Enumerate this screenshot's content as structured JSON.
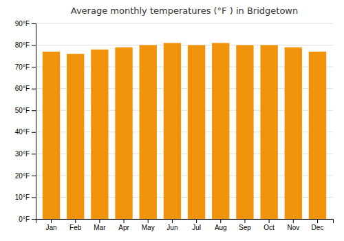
{
  "chart_data": {
    "type": "bar",
    "title": "Average monthly temperatures (°F ) in Bridgetown",
    "categories": [
      "Jan",
      "Feb",
      "Mar",
      "Apr",
      "May",
      "Jun",
      "Jul",
      "Aug",
      "Sep",
      "Oct",
      "Nov",
      "Dec"
    ],
    "values": [
      77,
      76,
      78,
      79,
      80,
      81,
      80,
      81,
      80,
      80,
      79,
      77
    ],
    "color": "#F0920A",
    "ylim": [
      0,
      90
    ],
    "yticks": [
      {
        "value": 0,
        "label": "0°F"
      },
      {
        "value": 10,
        "label": "10°F"
      },
      {
        "value": 20,
        "label": "20°F"
      },
      {
        "value": 30,
        "label": "30°F"
      },
      {
        "value": 40,
        "label": "40°F"
      },
      {
        "value": 50,
        "label": "50°F"
      },
      {
        "value": 60,
        "label": "60°F"
      },
      {
        "value": 70,
        "label": "70°F"
      },
      {
        "value": 80,
        "label": "80°F"
      },
      {
        "value": 90,
        "label": "90°F"
      }
    ],
    "grid": true
  }
}
